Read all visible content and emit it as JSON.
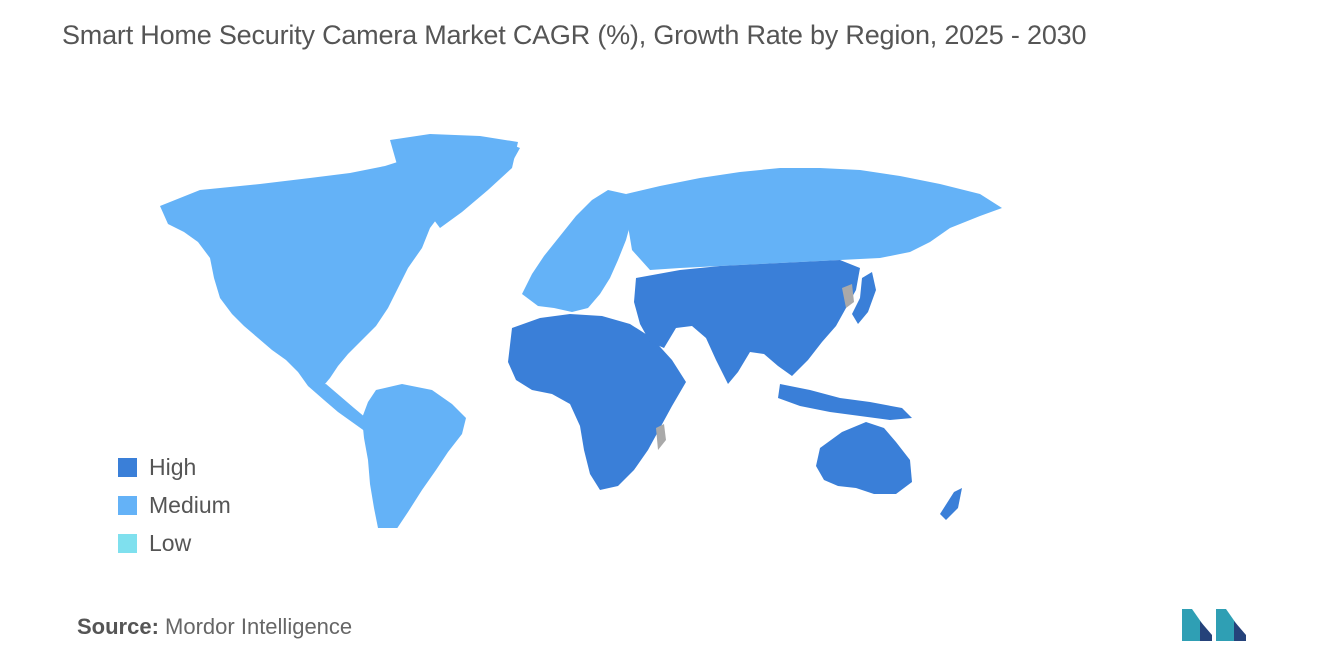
{
  "title": "Smart Home Security Camera Market CAGR (%), Growth Rate by Region, 2025 - 2030",
  "colors": {
    "high": "#3a7fd8",
    "medium": "#64b2f7",
    "low": "#7fe0ee",
    "no_data": "#a9a9a9"
  },
  "legend": [
    {
      "label": "High",
      "color": "#3a7fd8"
    },
    {
      "label": "Medium",
      "color": "#64b2f7"
    },
    {
      "label": "Low",
      "color": "#7fe0ee"
    }
  ],
  "regions": [
    {
      "name": "North America",
      "level": "Medium"
    },
    {
      "name": "South America",
      "level": "Medium"
    },
    {
      "name": "Europe",
      "level": "Medium"
    },
    {
      "name": "Russia",
      "level": "Medium"
    },
    {
      "name": "Africa",
      "level": "High"
    },
    {
      "name": "Middle East",
      "level": "High"
    },
    {
      "name": "Asia",
      "level": "High"
    },
    {
      "name": "Australia",
      "level": "High"
    }
  ],
  "source": {
    "label": "Source:",
    "text": "Mordor Intelligence"
  },
  "logo": {
    "icon": "mordor-intelligence-logo"
  }
}
